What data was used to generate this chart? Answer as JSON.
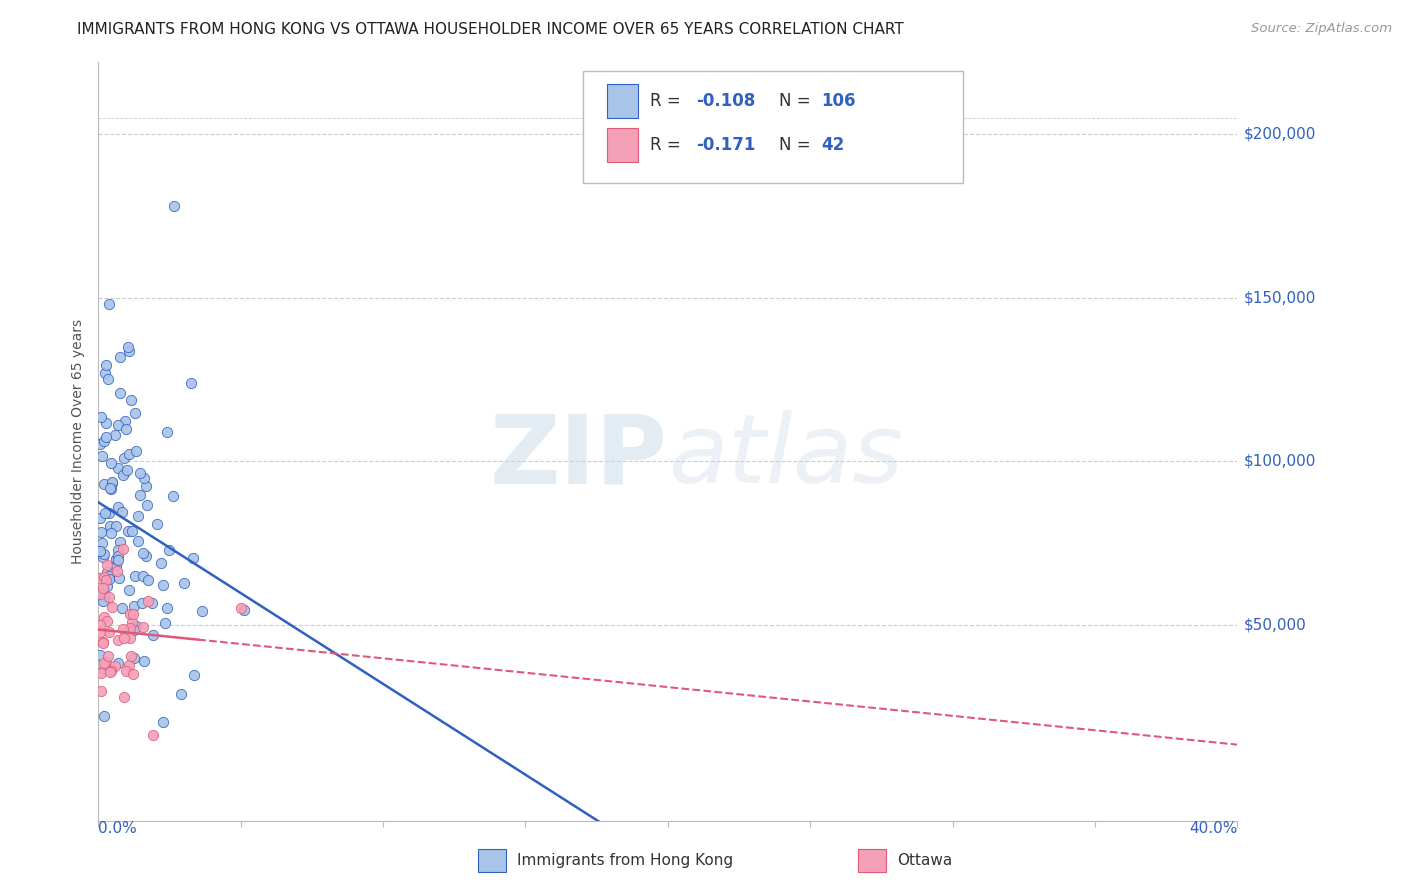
{
  "title": "IMMIGRANTS FROM HONG KONG VS OTTAWA HOUSEHOLDER INCOME OVER 65 YEARS CORRELATION CHART",
  "source": "Source: ZipAtlas.com",
  "ylabel": "Householder Income Over 65 years",
  "xlim": [
    0.0,
    40.0
  ],
  "ylim": [
    -10000,
    220000
  ],
  "series1_color": "#a8c4e8",
  "series2_color": "#f4a0b8",
  "line1_color": "#3060c0",
  "line2_color": "#e05878",
  "watermark_zip": "ZIP",
  "watermark_atlas": "atlas",
  "legend1_r": "-0.108",
  "legend1_n": "106",
  "legend2_r": "-0.171",
  "legend2_n": "42",
  "r_color": "#3060c0",
  "n_color": "#3060c0"
}
